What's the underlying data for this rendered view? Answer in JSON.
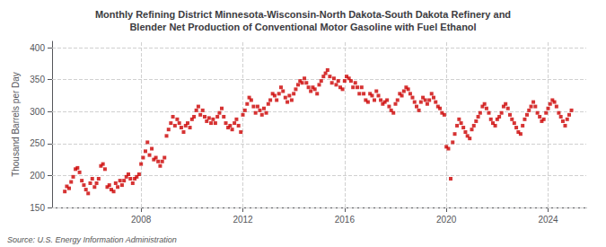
{
  "chart_data": {
    "type": "scatter",
    "title": "Monthly Refining District Minnesota-Wisconsin-North Dakota-South Dakota Refinery and\nBlender Net Production of Conventional Motor Gasoline with Fuel Ethanol",
    "ylabel": "Thousand Barrels per Day",
    "source": "Source: U.S. Energy Information Administration",
    "color": "#cc0000",
    "marker": "square",
    "grid": true,
    "xlim": [
      2004.5,
      2025.5
    ],
    "xticks": [
      2008,
      2012,
      2016,
      2020,
      2024
    ],
    "ylim": [
      150,
      410
    ],
    "yticks": [
      150,
      200,
      250,
      300,
      350,
      400
    ],
    "x": [
      2005.0,
      2005.08,
      2005.17,
      2005.25,
      2005.33,
      2005.42,
      2005.5,
      2005.58,
      2005.67,
      2005.75,
      2005.83,
      2005.92,
      2006.0,
      2006.08,
      2006.17,
      2006.25,
      2006.33,
      2006.42,
      2006.5,
      2006.58,
      2006.67,
      2006.75,
      2006.83,
      2006.92,
      2007.0,
      2007.08,
      2007.17,
      2007.25,
      2007.33,
      2007.42,
      2007.5,
      2007.58,
      2007.67,
      2007.75,
      2007.83,
      2007.92,
      2008.0,
      2008.08,
      2008.17,
      2008.25,
      2008.33,
      2008.42,
      2008.5,
      2008.58,
      2008.67,
      2008.75,
      2008.83,
      2008.92,
      2009.0,
      2009.08,
      2009.17,
      2009.25,
      2009.33,
      2009.42,
      2009.5,
      2009.58,
      2009.67,
      2009.75,
      2009.83,
      2009.92,
      2010.0,
      2010.08,
      2010.17,
      2010.25,
      2010.33,
      2010.42,
      2010.5,
      2010.58,
      2010.67,
      2010.75,
      2010.83,
      2010.92,
      2011.0,
      2011.08,
      2011.17,
      2011.25,
      2011.33,
      2011.42,
      2011.5,
      2011.58,
      2011.67,
      2011.75,
      2011.83,
      2011.92,
      2012.0,
      2012.08,
      2012.17,
      2012.25,
      2012.33,
      2012.42,
      2012.5,
      2012.58,
      2012.67,
      2012.75,
      2012.83,
      2012.92,
      2013.0,
      2013.08,
      2013.17,
      2013.25,
      2013.33,
      2013.42,
      2013.5,
      2013.58,
      2013.67,
      2013.75,
      2013.83,
      2013.92,
      2014.0,
      2014.08,
      2014.17,
      2014.25,
      2014.33,
      2014.42,
      2014.5,
      2014.58,
      2014.67,
      2014.75,
      2014.83,
      2014.92,
      2015.0,
      2015.08,
      2015.17,
      2015.25,
      2015.33,
      2015.42,
      2015.5,
      2015.58,
      2015.67,
      2015.75,
      2015.83,
      2015.92,
      2016.0,
      2016.08,
      2016.17,
      2016.25,
      2016.33,
      2016.42,
      2016.5,
      2016.58,
      2016.67,
      2016.75,
      2016.83,
      2016.92,
      2017.0,
      2017.08,
      2017.17,
      2017.25,
      2017.33,
      2017.42,
      2017.5,
      2017.58,
      2017.67,
      2017.75,
      2017.83,
      2017.92,
      2018.0,
      2018.08,
      2018.17,
      2018.25,
      2018.33,
      2018.42,
      2018.5,
      2018.58,
      2018.67,
      2018.75,
      2018.83,
      2018.92,
      2019.0,
      2019.08,
      2019.17,
      2019.25,
      2019.33,
      2019.42,
      2019.5,
      2019.58,
      2019.67,
      2019.75,
      2019.83,
      2019.92,
      2020.0,
      2020.08,
      2020.17,
      2020.25,
      2020.33,
      2020.42,
      2020.5,
      2020.58,
      2020.67,
      2020.75,
      2020.83,
      2020.92,
      2021.0,
      2021.08,
      2021.17,
      2021.25,
      2021.33,
      2021.42,
      2021.5,
      2021.58,
      2021.67,
      2021.75,
      2021.83,
      2021.92,
      2022.0,
      2022.08,
      2022.17,
      2022.25,
      2022.33,
      2022.42,
      2022.5,
      2022.58,
      2022.67,
      2022.75,
      2022.83,
      2022.92,
      2023.0,
      2023.08,
      2023.17,
      2023.25,
      2023.33,
      2023.42,
      2023.5,
      2023.58,
      2023.67,
      2023.75,
      2023.83,
      2023.92,
      2024.0,
      2024.08,
      2024.17,
      2024.25,
      2024.33,
      2024.42,
      2024.5,
      2024.58,
      2024.67,
      2024.75,
      2024.83,
      2024.92
    ],
    "values": [
      175,
      183,
      180,
      190,
      198,
      210,
      212,
      205,
      192,
      185,
      178,
      172,
      188,
      195,
      182,
      188,
      195,
      215,
      218,
      210,
      182,
      185,
      178,
      175,
      188,
      182,
      192,
      185,
      192,
      198,
      202,
      195,
      188,
      195,
      198,
      202,
      218,
      228,
      238,
      252,
      232,
      242,
      225,
      228,
      222,
      215,
      222,
      228,
      262,
      272,
      282,
      292,
      278,
      288,
      282,
      275,
      268,
      278,
      282,
      275,
      288,
      292,
      302,
      308,
      295,
      302,
      292,
      285,
      290,
      282,
      288,
      282,
      292,
      298,
      305,
      292,
      282,
      275,
      278,
      272,
      282,
      288,
      278,
      268,
      295,
      302,
      312,
      322,
      318,
      308,
      298,
      308,
      302,
      295,
      305,
      298,
      312,
      318,
      328,
      325,
      318,
      328,
      338,
      332,
      322,
      315,
      325,
      318,
      328,
      335,
      342,
      348,
      345,
      352,
      345,
      338,
      332,
      338,
      335,
      328,
      342,
      348,
      355,
      360,
      365,
      355,
      345,
      352,
      342,
      348,
      338,
      335,
      348,
      355,
      352,
      348,
      338,
      345,
      338,
      328,
      338,
      328,
      318,
      315,
      328,
      325,
      318,
      332,
      325,
      318,
      312,
      315,
      318,
      308,
      302,
      298,
      312,
      318,
      328,
      325,
      332,
      338,
      335,
      328,
      322,
      315,
      308,
      302,
      315,
      322,
      318,
      312,
      318,
      328,
      322,
      315,
      308,
      305,
      298,
      295,
      245,
      242,
      195,
      252,
      265,
      278,
      288,
      282,
      275,
      268,
      262,
      258,
      272,
      278,
      285,
      292,
      298,
      308,
      312,
      305,
      298,
      288,
      282,
      278,
      288,
      292,
      298,
      308,
      312,
      305,
      295,
      288,
      282,
      275,
      268,
      265,
      278,
      288,
      295,
      302,
      308,
      315,
      308,
      298,
      292,
      285,
      288,
      298,
      305,
      312,
      318,
      315,
      308,
      298,
      292,
      285,
      278,
      288,
      295,
      302
    ]
  }
}
